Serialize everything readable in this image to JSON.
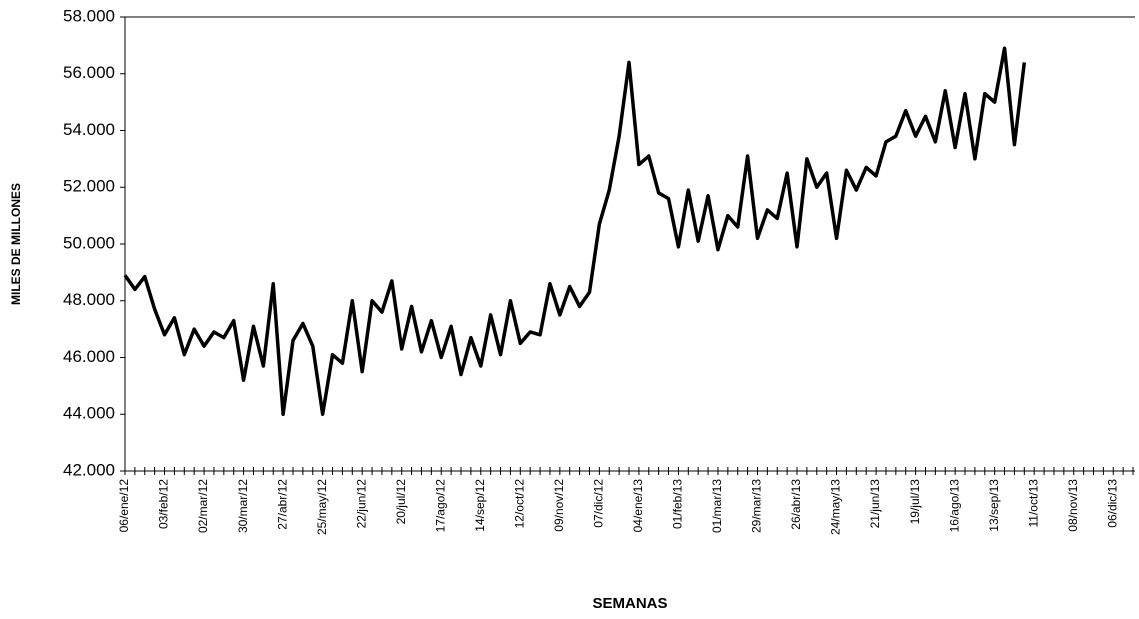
{
  "chart_data": {
    "type": "line",
    "x_label": "SEMANAS",
    "y_label": "MILES DE MILLONES",
    "categories": [
      "06/ene/12",
      null,
      null,
      null,
      "03/feb/12",
      null,
      null,
      null,
      "02/mar/12",
      null,
      null,
      null,
      "30/mar/12",
      null,
      null,
      null,
      "27/abr/12",
      null,
      null,
      null,
      "25/may/12",
      null,
      null,
      null,
      "22/jun/12",
      null,
      null,
      null,
      "20/jul/12",
      null,
      null,
      null,
      "17/ago/12",
      null,
      null,
      null,
      "14/sep/12",
      null,
      null,
      null,
      "12/oct/12",
      null,
      null,
      null,
      "09/nov/12",
      null,
      null,
      null,
      "07/dic/12",
      null,
      null,
      null,
      "04/ene/13",
      null,
      null,
      null,
      "01/feb/13",
      null,
      null,
      null,
      "01/mar/13",
      null,
      null,
      null,
      "29/mar/13",
      null,
      null,
      null,
      "26/abr/13",
      null,
      null,
      null,
      "24/may/13",
      null,
      null,
      null,
      "21/jun/13",
      null,
      null,
      null,
      "19/jul/13",
      null,
      null,
      null,
      "16/ago/13",
      null,
      null,
      null,
      "13/sep/13",
      null,
      null,
      null,
      "11/oct/13",
      null,
      null,
      null,
      "08/nov/13",
      null,
      null,
      null,
      "06/dic/13",
      null,
      null
    ],
    "values": [
      48900,
      48400,
      48850,
      47700,
      46800,
      47400,
      46100,
      47000,
      46400,
      46900,
      46700,
      47300,
      45200,
      47100,
      45700,
      48600,
      44000,
      46600,
      47200,
      46400,
      44000,
      46100,
      45800,
      48000,
      45500,
      48000,
      47600,
      48700,
      46300,
      47800,
      46200,
      47300,
      46000,
      47100,
      45400,
      46700,
      45700,
      47500,
      46100,
      48000,
      46500,
      46900,
      46800,
      48600,
      47500,
      48500,
      47800,
      48300,
      50700,
      51900,
      53800,
      56400,
      52800,
      53100,
      51800,
      51600,
      49900,
      51900,
      50100,
      51700,
      49800,
      51000,
      50600,
      53100,
      50200,
      51200,
      50900,
      52500,
      49900,
      53000,
      52000,
      52500,
      50200,
      52600,
      51900,
      52700,
      52400,
      53600,
      53800,
      54700,
      53800,
      54500,
      53600,
      55400,
      53400,
      55300,
      53000,
      55300,
      55000,
      56900,
      53500,
      56400,
      null,
      null,
      null,
      null,
      null,
      null,
      null,
      null,
      null,
      null,
      null
    ],
    "color": "#000000",
    "ylim": [
      42000,
      58000
    ],
    "yticks": [
      {
        "value": 42000,
        "label": "42.000"
      },
      {
        "value": 44000,
        "label": "44.000"
      },
      {
        "value": 46000,
        "label": "46.000"
      },
      {
        "value": 48000,
        "label": "48.000"
      },
      {
        "value": 50000,
        "label": "50.000"
      },
      {
        "value": 52000,
        "label": "52.000"
      },
      {
        "value": 54000,
        "label": "54.000"
      },
      {
        "value": 56000,
        "label": "56.000"
      },
      {
        "value": 58000,
        "label": "58.000"
      }
    ],
    "grid": false
  }
}
